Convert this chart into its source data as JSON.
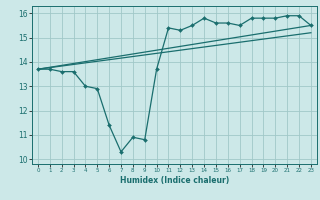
{
  "xlabel": "Humidex (Indice chaleur)",
  "xlim": [
    -0.5,
    23.5
  ],
  "ylim": [
    9.8,
    16.3
  ],
  "xticks": [
    0,
    1,
    2,
    3,
    4,
    5,
    6,
    7,
    8,
    9,
    10,
    11,
    12,
    13,
    14,
    15,
    16,
    17,
    18,
    19,
    20,
    21,
    22,
    23
  ],
  "yticks": [
    10,
    11,
    12,
    13,
    14,
    15,
    16
  ],
  "background_color": "#cce8e8",
  "grid_color": "#a0c8c8",
  "line_color": "#1a6e6e",
  "line1_x": [
    0,
    1,
    2,
    3,
    4,
    5,
    6,
    7,
    8,
    9,
    10,
    11,
    12,
    13,
    14,
    15,
    16,
    17,
    18,
    19,
    20,
    21,
    22,
    23
  ],
  "line1_y": [
    13.7,
    13.7,
    13.6,
    13.6,
    13.0,
    12.9,
    11.4,
    10.3,
    10.9,
    10.8,
    13.7,
    15.4,
    15.3,
    15.5,
    15.8,
    15.6,
    15.6,
    15.5,
    15.8,
    15.8,
    15.8,
    15.9,
    15.9,
    15.5
  ],
  "line2_x": [
    0,
    23
  ],
  "line2_y": [
    13.7,
    15.5
  ],
  "line3_x": [
    0,
    23
  ],
  "line3_y": [
    13.7,
    15.2
  ]
}
